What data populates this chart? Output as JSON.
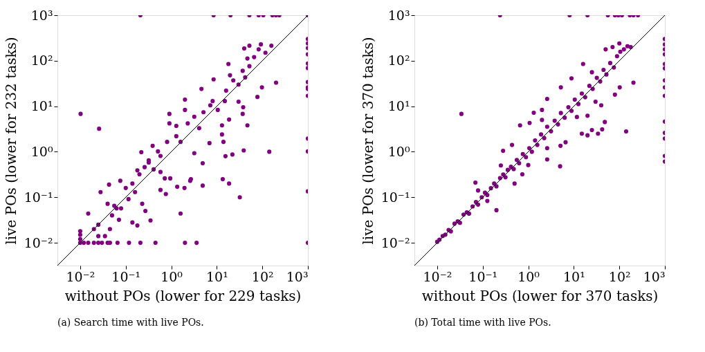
{
  "chart_data": [
    {
      "type": "scatter",
      "xlabel": "without POs (lower for 229 tasks)",
      "ylabel": "live POs (lower for 232 tasks)",
      "annotations": [
        "(a) Search time with live POs."
      ],
      "log": "xy",
      "grid": false,
      "marker": "circle",
      "xlim": [
        0.00316,
        1000
      ],
      "ylim": [
        0.00316,
        1000
      ],
      "xticks": [
        {
          "value": 0.01,
          "label": "10⁻²"
        },
        {
          "value": 0.1,
          "label": "10⁻¹"
        },
        {
          "value": 1,
          "label": "10⁰"
        },
        {
          "value": 10,
          "label": "10¹"
        },
        {
          "value": 100,
          "label": "10²"
        },
        {
          "value": 1000,
          "label": "10³"
        }
      ],
      "yticks": [
        {
          "value": 0.01,
          "label": "10⁻²"
        },
        {
          "value": 0.1,
          "label": "10⁻¹"
        },
        {
          "value": 1,
          "label": "10⁰"
        },
        {
          "value": 10,
          "label": "10¹"
        },
        {
          "value": 100,
          "label": "10²"
        },
        {
          "value": 1000,
          "label": "10³"
        }
      ],
      "series": [
        {
          "color": "#800080",
          "x": [
            0.21,
            8.5,
            20,
            52,
            83,
            105,
            166,
            199,
            236,
            1000,
            1000,
            1000,
            1000,
            1000,
            1000,
            1000,
            1000,
            1000,
            1000,
            1000,
            1000,
            1000,
            1000,
            1000,
            0.01,
            0.012,
            0.015,
            0.02,
            0.025,
            0.03,
            0.04,
            0.045,
            0.066,
            0.118,
            0.21,
            0.45,
            2.0,
            3.6,
            0.01,
            0.01,
            0.01,
            0.0102,
            0.026,
            32,
            1.6,
            18.6,
            13.5,
            142,
            200,
            98,
            78,
            37,
            47,
            39,
            22,
            15.5,
            14,
            13,
            13,
            18.6,
            38,
            30,
            18,
            8.5,
            4.6,
            16,
            4.9,
            2.7,
            1.95,
            1.35,
            0.35,
            0.18,
            0.14,
            0.015,
            0.028,
            0.043,
            0.076,
            0.22,
            0.39,
            0.91,
            0.91,
            2.0,
            3.2,
            4.9,
            6.9,
            0.02,
            0.025,
            0.05,
            0.071,
            0.079,
            0.056,
            0.115,
            0.16,
            0.14,
            0.2,
            0.18,
            0.26,
            0.32,
            0.41,
            0.58,
            0.72,
            0.58,
            0.81,
            1.29,
            1.6,
            2.3,
            3.2,
            5.1,
            7.2,
            8.1,
            10.5,
            15,
            23,
            30,
            42,
            37,
            52,
            66,
            83,
            117,
            158,
            93,
            52,
            40,
            47,
            19.5,
            2.0,
            4.1,
            1.29,
            0.51,
            0.32,
            0.045,
            0.035,
            0.025,
            0.063,
            0.04,
            0.1,
            0.27,
            0.23,
            0.58,
            0.76,
            0.95,
            2.6
          ],
          "values": [
            1000,
            1000,
            1000,
            1000,
            1000,
            1000,
            1000,
            1000,
            1000,
            1000,
            300,
            240,
            190,
            138,
            87,
            69,
            34,
            26,
            24,
            17,
            1.95,
            1.02,
            0.135,
            0.01,
            0.01,
            0.01,
            0.01,
            0.01,
            0.01,
            0.01,
            0.01,
            0.01,
            0.01,
            0.01,
            0.01,
            0.01,
            0.01,
            0.01,
            0.018,
            0.015,
            0.012,
            6.8,
            3.2,
            0.1,
            0.044,
            0.2,
            0.25,
            1.0,
            33,
            26,
            16,
            6.8,
            3.8,
            1.07,
            0.87,
            0.8,
            1.65,
            2.4,
            3.8,
            5.1,
            9.5,
            12.6,
            85,
            39,
            24,
            22,
            0.18,
            0.25,
            0.16,
            0.17,
            0.031,
            0.024,
            0.028,
            0.044,
            0.13,
            0.19,
            0.23,
            0.98,
            1.35,
            6.8,
            4.2,
            14,
            0.93,
            0.56,
            1.55,
            0.02,
            0.025,
            0.04,
            0.032,
            0.057,
            0.065,
            0.091,
            0.13,
            0.2,
            0.32,
            0.39,
            0.46,
            0.58,
            0.41,
            0.36,
            0.26,
            0.81,
            1.65,
            2.2,
            1.65,
            4.2,
            5.9,
            7.4,
            10.5,
            13,
            8.3,
            13,
            37,
            30,
            43,
            60,
            76,
            120,
            178,
            150,
            214,
            229,
            214,
            186,
            112,
            48,
            8.3,
            3.3,
            3.7,
            1.02,
            0.65,
            0.02,
            0.014,
            0.014,
            0.057,
            0.072,
            0.16,
            0.05,
            0.072,
            0.145,
            0.118,
            0.26,
            0.23
          ]
        },
        {
          "type": "line",
          "marker": "none",
          "color": "#000000",
          "x": [
            0.00316,
            1000
          ],
          "values": [
            0.00316,
            1000
          ]
        }
      ]
    },
    {
      "type": "scatter",
      "xlabel": "without POs (lower for 370 tasks)",
      "ylabel": "live POs (lower for 370 tasks)",
      "annotations": [
        "(b) Total time with live POs."
      ],
      "log": "xy",
      "grid": false,
      "marker": "circle",
      "xlim": [
        0.00316,
        1000
      ],
      "ylim": [
        0.00316,
        1000
      ],
      "xticks": [
        {
          "value": 0.01,
          "label": "10⁻²"
        },
        {
          "value": 0.1,
          "label": "10⁻¹"
        },
        {
          "value": 1,
          "label": "10⁰"
        },
        {
          "value": 10,
          "label": "10¹"
        },
        {
          "value": 100,
          "label": "10²"
        },
        {
          "value": 1000,
          "label": "10³"
        }
      ],
      "yticks": [
        {
          "value": 0.01,
          "label": "10⁻²"
        },
        {
          "value": 0.1,
          "label": "10⁻¹"
        },
        {
          "value": 1,
          "label": "10⁰"
        },
        {
          "value": 10,
          "label": "10¹"
        },
        {
          "value": 100,
          "label": "10²"
        },
        {
          "value": 1000,
          "label": "10³"
        }
      ],
      "series": [
        {
          "color": "#800080",
          "x": [
            0.24,
            8.1,
            20,
            56,
            80,
            95,
            114,
            170,
            204,
            257,
            1000,
            1000,
            1000,
            1000,
            1000,
            1000,
            1000,
            1000,
            1000,
            1000,
            1000,
            1000,
            1000,
            1000,
            0.034,
            0.2,
            5.0,
            141,
            80,
            48,
            42,
            34,
            25,
            20,
            15,
            11.7,
            20,
            30,
            40,
            102,
            204,
            16,
            8.9,
            5.2,
            2.6,
            2.0,
            1.32,
            1.07,
            0.66,
            0.44,
            0.28,
            0.069,
            2.6,
            5.1,
            6.6,
            2.6,
            0.74,
            0.5,
            0.126,
            1.0,
            0.01,
            0.0112,
            0.0132,
            0.0151,
            0.0178,
            0.02,
            0.024,
            0.0282,
            0.0316,
            0.038,
            0.0447,
            0.05,
            0.06,
            0.071,
            0.079,
            0.095,
            0.112,
            0.126,
            0.151,
            0.178,
            0.2,
            0.24,
            0.282,
            0.316,
            0.355,
            0.417,
            0.479,
            0.56,
            0.63,
            0.76,
            0.89,
            1.05,
            1.2,
            1.41,
            1.58,
            1.91,
            2.24,
            2.6,
            3.16,
            3.8,
            4.5,
            5.2,
            6.3,
            7.6,
            8.9,
            10.5,
            12.6,
            15,
            17.8,
            22,
            26,
            32,
            38,
            45,
            52,
            63,
            76,
            89,
            105,
            126,
            151,
            178,
            71,
            50,
            100,
            25,
            2.0,
            0.25,
            0.079
          ],
          "values": [
            1000,
            1000,
            1000,
            1000,
            1000,
            1000,
            1000,
            1000,
            1000,
            1000,
            300,
            228,
            178,
            138,
            85,
            68,
            37,
            26,
            17,
            4.6,
            2.6,
            1.95,
            0.81,
            0.61,
            6.8,
            0.052,
            0.48,
            2.8,
            18,
            4.5,
            3.1,
            2.5,
            3.0,
            2.3,
            2.5,
            5.8,
            6.2,
            12.6,
            10.5,
            26,
            33,
            85,
            41,
            26,
            14.5,
            8.3,
            7.2,
            4.3,
            3.8,
            1.41,
            1.05,
            0.21,
            0.68,
            1.35,
            1.62,
            1.2,
            0.32,
            0.2,
            0.083,
            0.51,
            0.0105,
            0.0117,
            0.0141,
            0.0151,
            0.0191,
            0.0178,
            0.0263,
            0.0295,
            0.0275,
            0.0417,
            0.0468,
            0.0437,
            0.063,
            0.079,
            0.069,
            0.1,
            0.126,
            0.112,
            0.158,
            0.2,
            0.174,
            0.263,
            0.316,
            0.275,
            0.4,
            0.468,
            0.417,
            0.66,
            0.56,
            0.89,
            0.76,
            1.2,
            1.0,
            1.78,
            1.41,
            2.4,
            2.0,
            3.55,
            2.82,
            4.8,
            4.0,
            7.1,
            5.6,
            9.5,
            7.9,
            14,
            11.2,
            19,
            15.8,
            28,
            24,
            42,
            35,
            63,
            50,
            89,
            71,
            126,
            158,
            178,
            209,
            200,
            200,
            178,
            240,
            56,
            5.0,
            0.5,
            0.141
          ]
        },
        {
          "type": "line",
          "marker": "none",
          "color": "#000000",
          "x": [
            0.00316,
            1000
          ],
          "values": [
            0.00316,
            1000
          ]
        }
      ]
    }
  ]
}
